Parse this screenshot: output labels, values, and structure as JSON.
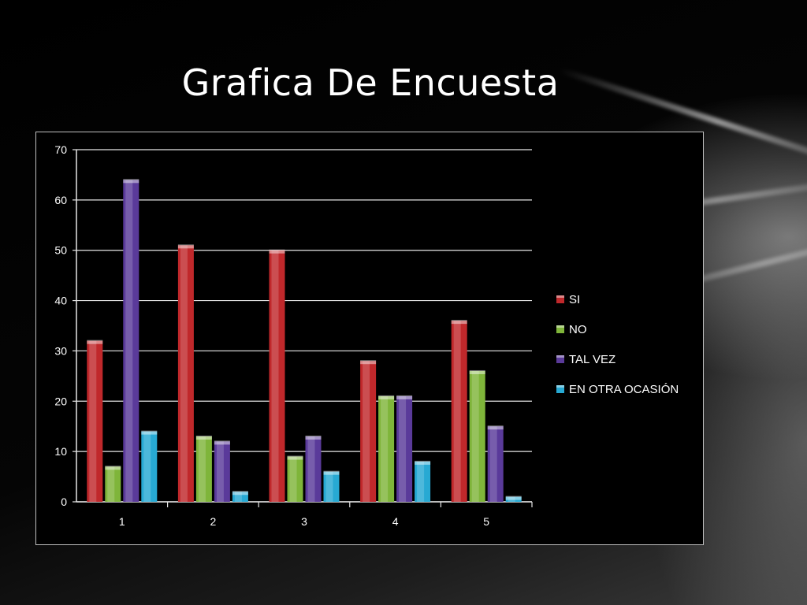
{
  "slide": {
    "title": "Grafica De Encuesta"
  },
  "chart_data": {
    "type": "bar",
    "categories": [
      "1",
      "2",
      "3",
      "4",
      "5"
    ],
    "series": [
      {
        "name": "SI",
        "color": "#c0282b",
        "values": [
          32,
          51,
          50,
          28,
          36
        ]
      },
      {
        "name": "NO",
        "color": "#7fb53a",
        "values": [
          7,
          13,
          9,
          21,
          26
        ]
      },
      {
        "name": "TAL VEZ",
        "color": "#5a3a9a",
        "values": [
          64,
          12,
          13,
          21,
          15
        ]
      },
      {
        "name": "EN OTRA OCASIÓN",
        "color": "#27a9d3",
        "values": [
          14,
          2,
          6,
          8,
          1
        ]
      }
    ],
    "ylim": [
      0,
      70
    ],
    "yticks": [
      0,
      10,
      20,
      30,
      40,
      50,
      60,
      70
    ],
    "grid": true,
    "legend_position": "right",
    "title": "",
    "xlabel": "",
    "ylabel": ""
  }
}
